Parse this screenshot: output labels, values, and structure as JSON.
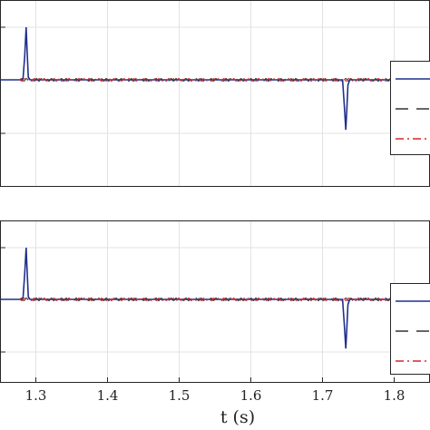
{
  "chart_data": [
    {
      "type": "line",
      "title": "",
      "xlabel": "",
      "ylabel": "",
      "xlim": [
        1.25,
        1.85
      ],
      "grid": true,
      "legend": "right",
      "series": [
        {
          "style": "solid",
          "color": "#1f2f8c",
          "x": [
            1.25,
            1.282,
            1.2845,
            1.2865,
            1.288,
            1.2895,
            1.292,
            1.728,
            1.7305,
            1.7325,
            1.734,
            1.7355,
            1.738,
            1.85
          ],
          "y": [
            0,
            0,
            0.45,
            1,
            0.5,
            0.05,
            0,
            0,
            -0.5,
            -0.95,
            -0.55,
            -0.1,
            0,
            0
          ]
        },
        {
          "style": "dashed",
          "color": "#333333",
          "x": [
            1.25,
            1.85
          ],
          "y": [
            0,
            0
          ]
        },
        {
          "style": "dashdot",
          "color": "#d62728",
          "x": [
            1.25,
            1.85
          ],
          "y": [
            0,
            0
          ]
        }
      ]
    },
    {
      "type": "line",
      "title": "",
      "xlabel": "t (s)",
      "ylabel": "",
      "xlim": [
        1.25,
        1.85
      ],
      "x_ticks": [
        "1.3",
        "1.4",
        "1.5",
        "1.6",
        "1.7",
        "1.8"
      ],
      "grid": true,
      "legend": "right",
      "series": [
        {
          "style": "solid",
          "color": "#1f2f8c",
          "x": [
            1.25,
            1.282,
            1.2845,
            1.2865,
            1.288,
            1.2895,
            1.292,
            1.728,
            1.7305,
            1.7325,
            1.734,
            1.7355,
            1.738,
            1.85
          ],
          "y": [
            0,
            0,
            0.5,
            1,
            0.5,
            0.05,
            0,
            0,
            -0.5,
            -0.95,
            -0.55,
            -0.1,
            0,
            0
          ]
        },
        {
          "style": "dashed",
          "color": "#333333",
          "x": [
            1.25,
            1.85
          ],
          "y": [
            0,
            0
          ]
        },
        {
          "style": "dashdot",
          "color": "#d62728",
          "x": [
            1.25,
            1.85
          ],
          "y": [
            0,
            0
          ]
        }
      ]
    }
  ]
}
